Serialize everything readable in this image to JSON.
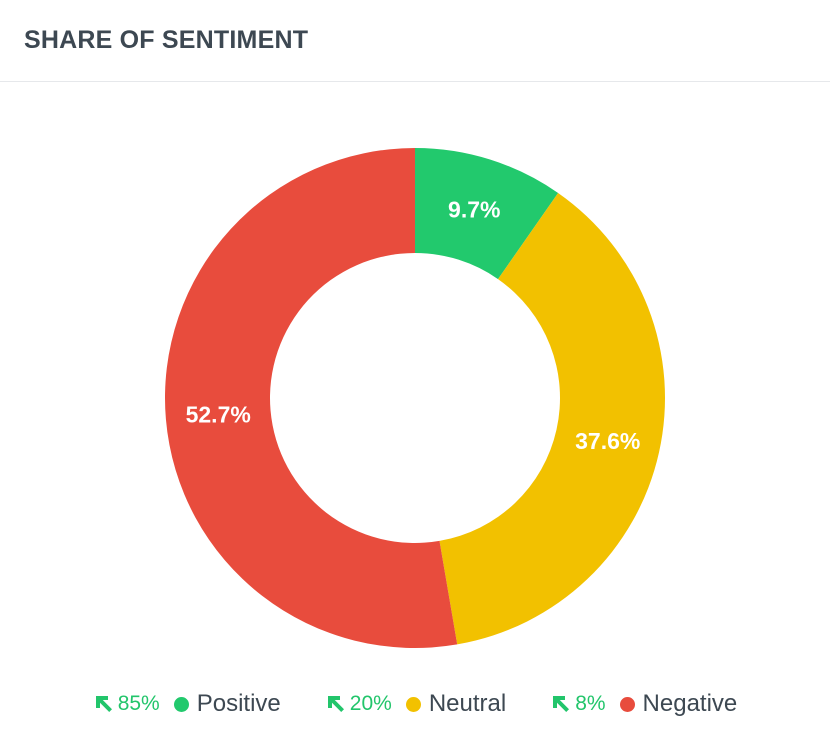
{
  "header": {
    "title": "SHARE OF SENTIMENT"
  },
  "chart_data": {
    "type": "pie",
    "donut": true,
    "categories": [
      "Positive",
      "Neutral",
      "Negative"
    ],
    "values": [
      9.7,
      37.6,
      52.7
    ],
    "labels": [
      "9.7%",
      "37.6%",
      "52.7%"
    ],
    "colors": [
      "#22c96d",
      "#f2c100",
      "#e84c3d"
    ],
    "legend_placement": "bottom"
  },
  "legend": {
    "items": [
      {
        "trend": "85%",
        "name": "Positive",
        "color": "#22c96d"
      },
      {
        "trend": "20%",
        "name": "Neutral",
        "color": "#f2c100"
      },
      {
        "trend": "8%",
        "name": "Negative",
        "color": "#e84c3d"
      }
    ],
    "trend_color": "#22c56b",
    "trend_icon": "arrow-up-left-icon"
  }
}
